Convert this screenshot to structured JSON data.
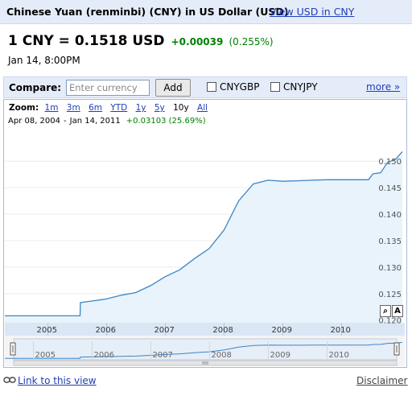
{
  "header": {
    "title": "Chinese Yuan (renminbi) (CNY) in US Dollar (USD)",
    "view_link": "View USD in CNY"
  },
  "rate": {
    "main": "1 CNY = 0.1518 USD",
    "change": "+0.00039",
    "change_pct": "(0.255%)",
    "timestamp": "Jan 14, 8:00PM"
  },
  "compare": {
    "label": "Compare:",
    "input_placeholder": "Enter currency",
    "add_label": "Add",
    "option1": "CNYGBP",
    "option2": "CNYJPY",
    "more_label": "more »"
  },
  "zoom": {
    "label": "Zoom:",
    "options": [
      "1m",
      "3m",
      "6m",
      "YTD",
      "1y",
      "5y",
      "10y",
      "All"
    ],
    "active": "10y"
  },
  "range": {
    "start": "Apr 08, 2004",
    "sep": "-",
    "end": "Jan 14, 2011",
    "change": "+0.03103 (25.69%)"
  },
  "tools": {
    "zoom_box": "A"
  },
  "footer": {
    "link_label": "Link to this view",
    "disclaimer": "Disclaimer"
  },
  "colors": {
    "accent_bg": "#e5ecf9",
    "line": "#3d85c6",
    "fill": "#e8f3fb",
    "positive": "#008000",
    "link": "#1f3fb8"
  },
  "chart_data": {
    "type": "area",
    "x_range": [
      "2004-04-08",
      "2011-01-14"
    ],
    "y_ticks": [
      0.12,
      0.125,
      0.13,
      0.135,
      0.14,
      0.145,
      0.15
    ],
    "y_tick_labels": [
      "0.120",
      "0.125",
      "0.130",
      "0.135",
      "0.140",
      "0.145",
      "0.150"
    ],
    "x_tick_labels": [
      "2005",
      "2006",
      "2007",
      "2008",
      "2009",
      "2010"
    ],
    "overview_tick_labels": [
      "2005",
      "2006",
      "2007",
      "2008",
      "2009",
      "2010"
    ],
    "ylim": [
      0.1195,
      0.1555
    ],
    "series": [
      {
        "x": [
          "2004-04-08",
          "2005-07-20",
          "2005-07-22",
          "2005-10-01",
          "2006-01-01",
          "2006-04-01",
          "2006-07-01",
          "2006-10-01",
          "2007-01-01",
          "2007-04-01",
          "2007-07-01",
          "2007-10-01",
          "2008-01-01",
          "2008-04-01",
          "2008-07-01",
          "2008-10-01",
          "2009-01-01",
          "2009-04-01",
          "2009-07-01",
          "2009-10-01",
          "2010-01-01",
          "2010-06-18",
          "2010-07-15",
          "2010-09-01",
          "2010-10-15",
          "2010-12-01",
          "2011-01-14"
        ],
        "y": [
          0.1208,
          0.1208,
          0.1233,
          0.1236,
          0.124,
          0.1247,
          0.1252,
          0.1265,
          0.1282,
          0.1295,
          0.1316,
          0.1335,
          0.137,
          0.1425,
          0.1457,
          0.1464,
          0.1462,
          0.1463,
          0.1464,
          0.1465,
          0.1465,
          0.1465,
          0.1476,
          0.1478,
          0.1498,
          0.1503,
          0.1518
        ]
      }
    ]
  }
}
